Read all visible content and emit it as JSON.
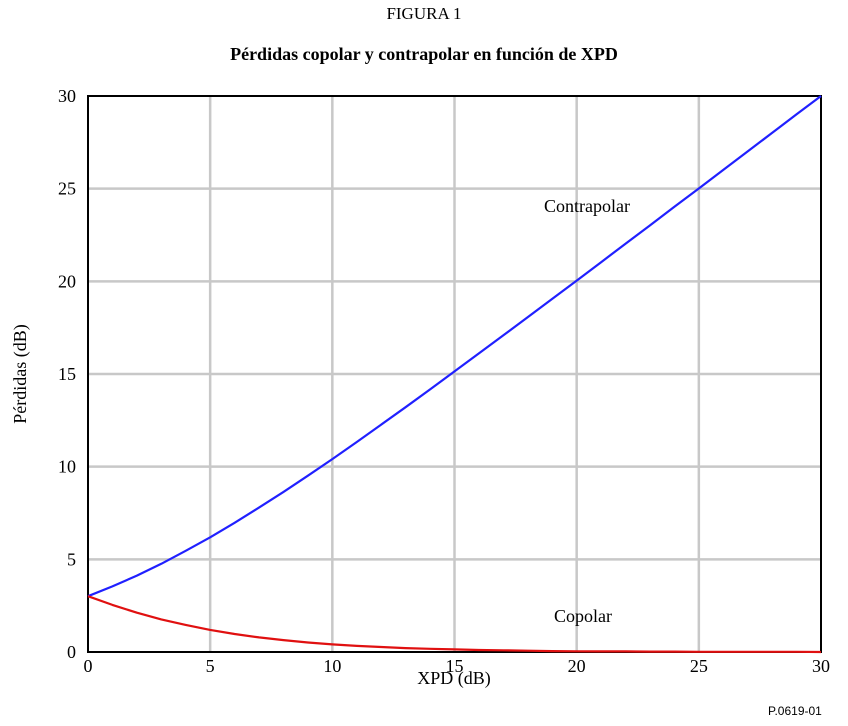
{
  "figure_label": "FIGURA 1",
  "figure_code": "P.0619-01",
  "chart_data": {
    "type": "line",
    "title": "Pérdidas copolar y contrapolar en función de XPD",
    "xlabel": "XPD (dB)",
    "ylabel": "Pérdidas (dB)",
    "xlim": [
      0,
      30
    ],
    "ylim": [
      0,
      30
    ],
    "xticks": [
      "0",
      "5",
      "10",
      "15",
      "20",
      "25",
      "30"
    ],
    "yticks": [
      "0",
      "5",
      "10",
      "15",
      "20",
      "25",
      "30"
    ],
    "grid": true,
    "legend": "none",
    "series": [
      {
        "name": "Contrapolar",
        "color": "#2020ff",
        "x": [
          0,
          1,
          2,
          3,
          4,
          5,
          6,
          7,
          8,
          9,
          10,
          11,
          12,
          13,
          14,
          15,
          16,
          17,
          18,
          19,
          20,
          21,
          22,
          23,
          24,
          25,
          26,
          27,
          28,
          29,
          30
        ],
        "values": [
          3.01,
          3.54,
          4.12,
          4.76,
          5.46,
          6.19,
          6.97,
          7.79,
          8.64,
          9.51,
          10.41,
          11.33,
          12.27,
          13.21,
          14.17,
          15.14,
          16.11,
          17.09,
          18.07,
          19.05,
          20.04,
          21.03,
          22.03,
          23.02,
          24.02,
          25.01,
          26.01,
          27.01,
          28.01,
          29.01,
          30.0
        ]
      },
      {
        "name": "Copolar",
        "color": "#e01010",
        "x": [
          0,
          1,
          2,
          3,
          4,
          5,
          6,
          7,
          8,
          9,
          10,
          11,
          12,
          13,
          14,
          15,
          16,
          17,
          18,
          19,
          20,
          21,
          22,
          23,
          24,
          25,
          26,
          27,
          28,
          29,
          30
        ],
        "values": [
          3.01,
          2.54,
          2.12,
          1.76,
          1.46,
          1.19,
          0.97,
          0.79,
          0.64,
          0.51,
          0.41,
          0.33,
          0.27,
          0.21,
          0.17,
          0.14,
          0.11,
          0.09,
          0.07,
          0.05,
          0.04,
          0.03,
          0.03,
          0.02,
          0.02,
          0.01,
          0.01,
          0.01,
          0.01,
          0.01,
          0.0
        ]
      }
    ]
  }
}
